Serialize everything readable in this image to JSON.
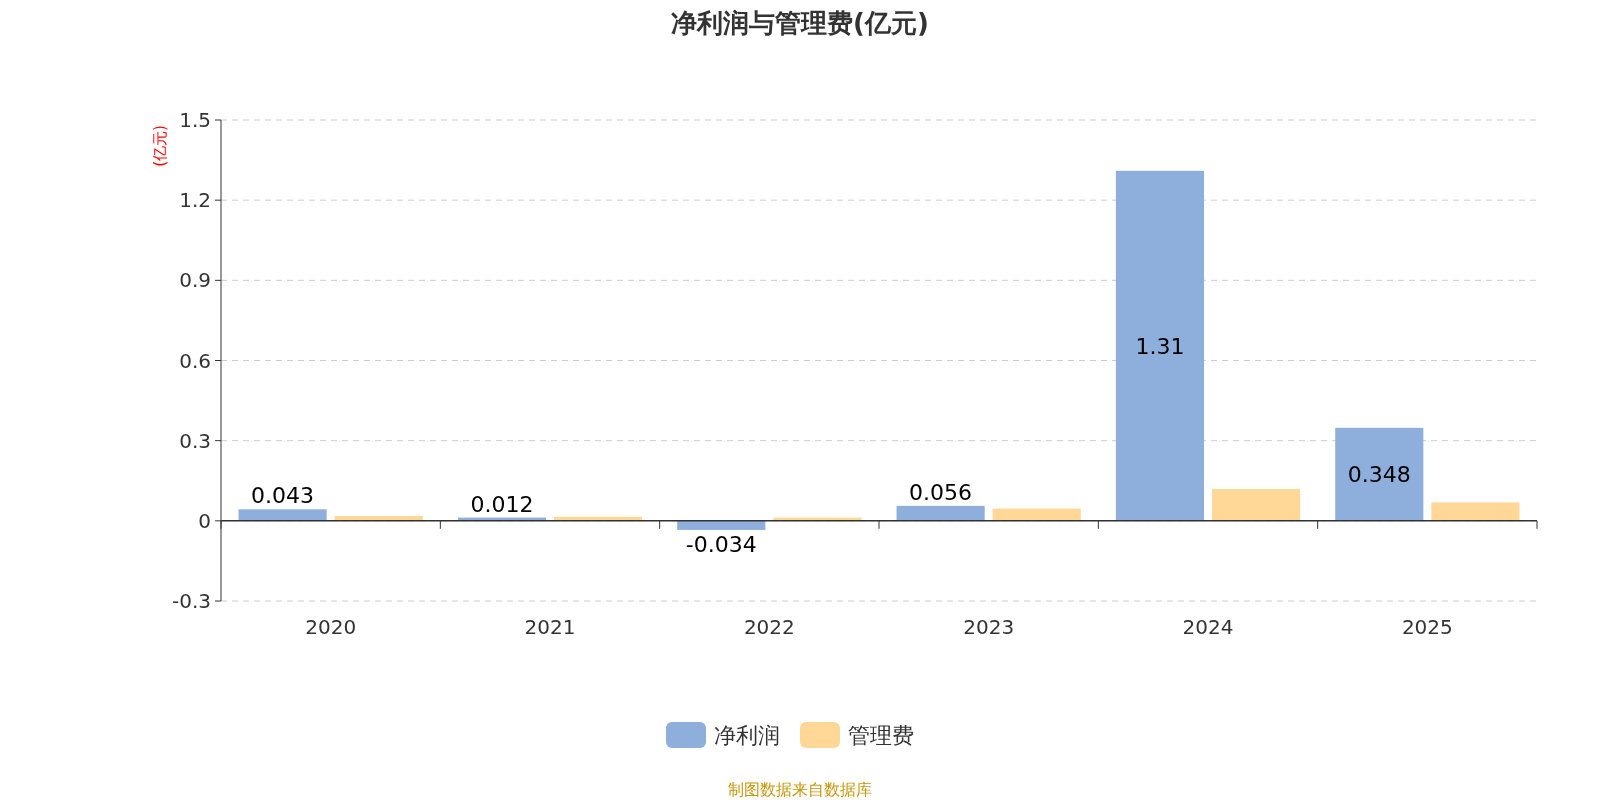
{
  "chart_data": {
    "type": "bar",
    "title": "净利润与管理费(亿元)",
    "ylabel": "(亿元)",
    "categories": [
      "2020",
      "2021",
      "2022",
      "2023",
      "2024",
      "2025"
    ],
    "series": [
      {
        "name": "净利润",
        "color": "#8eaedb",
        "values": [
          0.043,
          0.012,
          -0.034,
          0.056,
          1.31,
          0.348
        ],
        "value_labels": [
          "0.043",
          "0.012",
          "-0.034",
          "0.056",
          "1.31",
          "0.348"
        ]
      },
      {
        "name": "管理费",
        "color": "#ffd797",
        "values": [
          0.018,
          0.015,
          0.012,
          0.046,
          0.119,
          0.069
        ]
      }
    ],
    "ylim": [
      -0.3,
      1.5
    ],
    "yticks": [
      -0.3,
      0,
      0.3,
      0.6,
      0.9,
      1.2,
      1.5
    ],
    "grid": "y",
    "legend": "bottom",
    "annotations": [
      "制图数据来自数据库"
    ]
  }
}
